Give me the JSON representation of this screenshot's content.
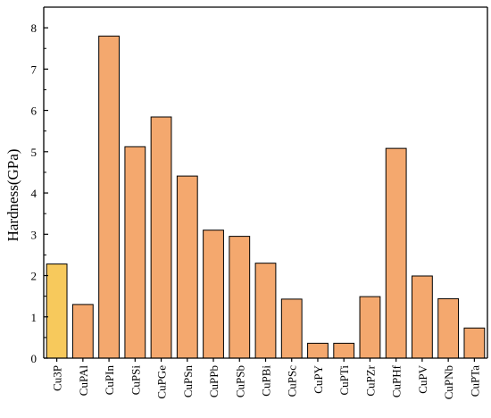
{
  "chart_data": {
    "type": "bar",
    "title": "",
    "xlabel": "",
    "ylabel": "Hardness(GPa)",
    "ylim": [
      0,
      8.5
    ],
    "yticks": [
      0,
      1,
      2,
      3,
      4,
      5,
      6,
      7,
      8
    ],
    "grid": false,
    "legend": "none",
    "categories": [
      "Cu3P",
      "CuPAl",
      "CuPIn",
      "CuPSi",
      "CuPGe",
      "CuPSn",
      "CuPPb",
      "CuPSb",
      "CuPBi",
      "CuPSc",
      "CuPY",
      "CuPTi",
      "CuPZr",
      "CuPHf",
      "CuPV",
      "CuPNb",
      "CuPTa"
    ],
    "values": [
      2.28,
      1.3,
      7.8,
      5.12,
      5.84,
      4.41,
      3.1,
      2.95,
      2.3,
      1.43,
      0.36,
      0.36,
      1.49,
      5.08,
      1.99,
      1.44,
      0.73
    ],
    "colors": {
      "highlight": "#f7c95c",
      "default": "#f4a86e"
    },
    "highlight_index": 0
  }
}
